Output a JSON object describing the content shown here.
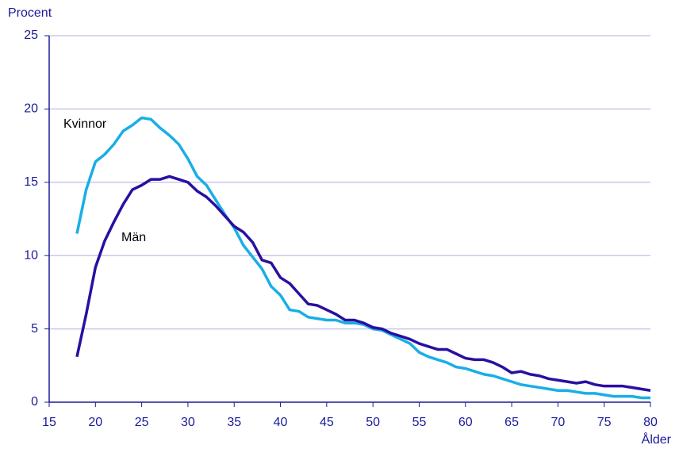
{
  "chart_data": {
    "type": "line",
    "y_label": "Procent",
    "x_label": "Ålder",
    "x": [
      18,
      19,
      20,
      21,
      22,
      23,
      24,
      25,
      26,
      27,
      28,
      29,
      30,
      31,
      32,
      33,
      34,
      35,
      36,
      37,
      38,
      39,
      40,
      41,
      42,
      43,
      44,
      45,
      46,
      47,
      48,
      49,
      50,
      51,
      52,
      53,
      54,
      55,
      56,
      57,
      58,
      59,
      60,
      61,
      62,
      63,
      64,
      65,
      66,
      67,
      68,
      69,
      70,
      71,
      72,
      73,
      74,
      75,
      76,
      77,
      78,
      79,
      80
    ],
    "series": [
      {
        "name": "Kvinnor",
        "color": "#1aaee6",
        "values": [
          11.5,
          14.5,
          16.4,
          16.9,
          17.6,
          18.5,
          18.9,
          19.4,
          19.3,
          18.7,
          18.2,
          17.6,
          16.6,
          15.4,
          14.8,
          13.8,
          12.8,
          11.9,
          10.7,
          9.9,
          9.1,
          7.9,
          7.3,
          6.3,
          6.2,
          5.8,
          5.7,
          5.6,
          5.6,
          5.4,
          5.4,
          5.3,
          5.0,
          4.9,
          4.6,
          4.3,
          4.0,
          3.4,
          3.1,
          2.9,
          2.7,
          2.4,
          2.3,
          2.1,
          1.9,
          1.8,
          1.6,
          1.4,
          1.2,
          1.1,
          1.0,
          0.9,
          0.8,
          0.8,
          0.7,
          0.6,
          0.6,
          0.5,
          0.4,
          0.4,
          0.4,
          0.3,
          0.3
        ]
      },
      {
        "name": "Män",
        "color": "#2a0fa0",
        "values": [
          3.1,
          6.0,
          9.2,
          11.0,
          12.3,
          13.5,
          14.5,
          14.8,
          15.2,
          15.2,
          15.4,
          15.2,
          15.0,
          14.4,
          14.0,
          13.4,
          12.7,
          12.0,
          11.6,
          10.9,
          9.7,
          9.5,
          8.5,
          8.1,
          7.4,
          6.7,
          6.6,
          6.3,
          6.0,
          5.6,
          5.6,
          5.4,
          5.1,
          5.0,
          4.7,
          4.5,
          4.3,
          4.0,
          3.8,
          3.6,
          3.6,
          3.3,
          3.0,
          2.9,
          2.9,
          2.7,
          2.4,
          2.0,
          2.1,
          1.9,
          1.8,
          1.6,
          1.5,
          1.4,
          1.3,
          1.4,
          1.2,
          1.1,
          1.1,
          1.1,
          1.0,
          0.9,
          0.8
        ]
      }
    ],
    "xlim": [
      15,
      80
    ],
    "xticks": [
      15,
      20,
      25,
      30,
      35,
      40,
      45,
      50,
      55,
      60,
      65,
      70,
      75,
      80
    ],
    "ylim": [
      0,
      25
    ],
    "yticks": [
      0,
      5,
      10,
      15,
      20,
      25
    ],
    "grid": true
  }
}
